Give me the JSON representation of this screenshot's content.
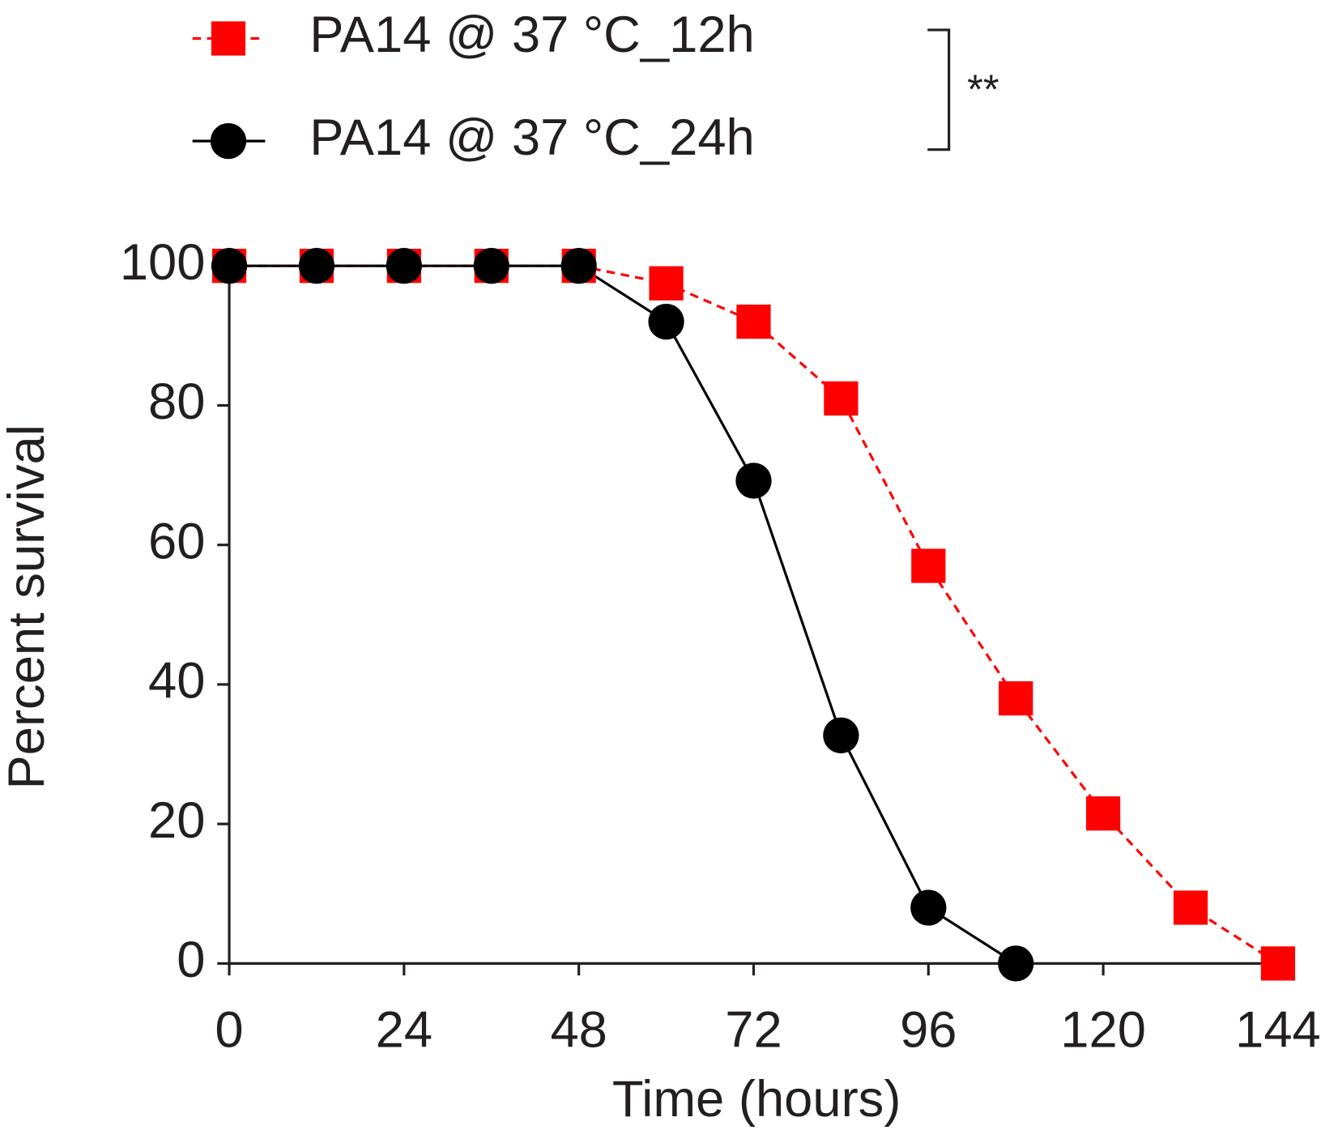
{
  "chart_data": {
    "type": "line",
    "x_label": "Time (hours)",
    "y_label": "Percent survival",
    "x": [
      0,
      12,
      24,
      36,
      48,
      60,
      72,
      84,
      96,
      108,
      120,
      132,
      144
    ],
    "series": [
      {
        "name": "PA14 @ 37 °C_12h",
        "color": "#ff0000",
        "dashed": true,
        "marker": "square",
        "values": [
          100,
          100,
          100,
          100,
          100,
          97.5,
          92,
          81,
          57,
          38,
          21.5,
          8,
          0
        ]
      },
      {
        "name": "PA14 @ 37 °C_24h",
        "color": "#000000",
        "dashed": false,
        "marker": "circle",
        "values": [
          100,
          100,
          100,
          100,
          100,
          92,
          69.2,
          32.7,
          8,
          0,
          null,
          null,
          null
        ]
      }
    ],
    "annotation": "**",
    "xlim": [
      0,
      144
    ],
    "xticks": [
      0,
      24,
      48,
      72,
      96,
      120,
      144
    ],
    "ylim": [
      0,
      100
    ],
    "yticks": [
      0,
      20,
      40,
      60,
      80,
      100
    ],
    "grid": false
  }
}
